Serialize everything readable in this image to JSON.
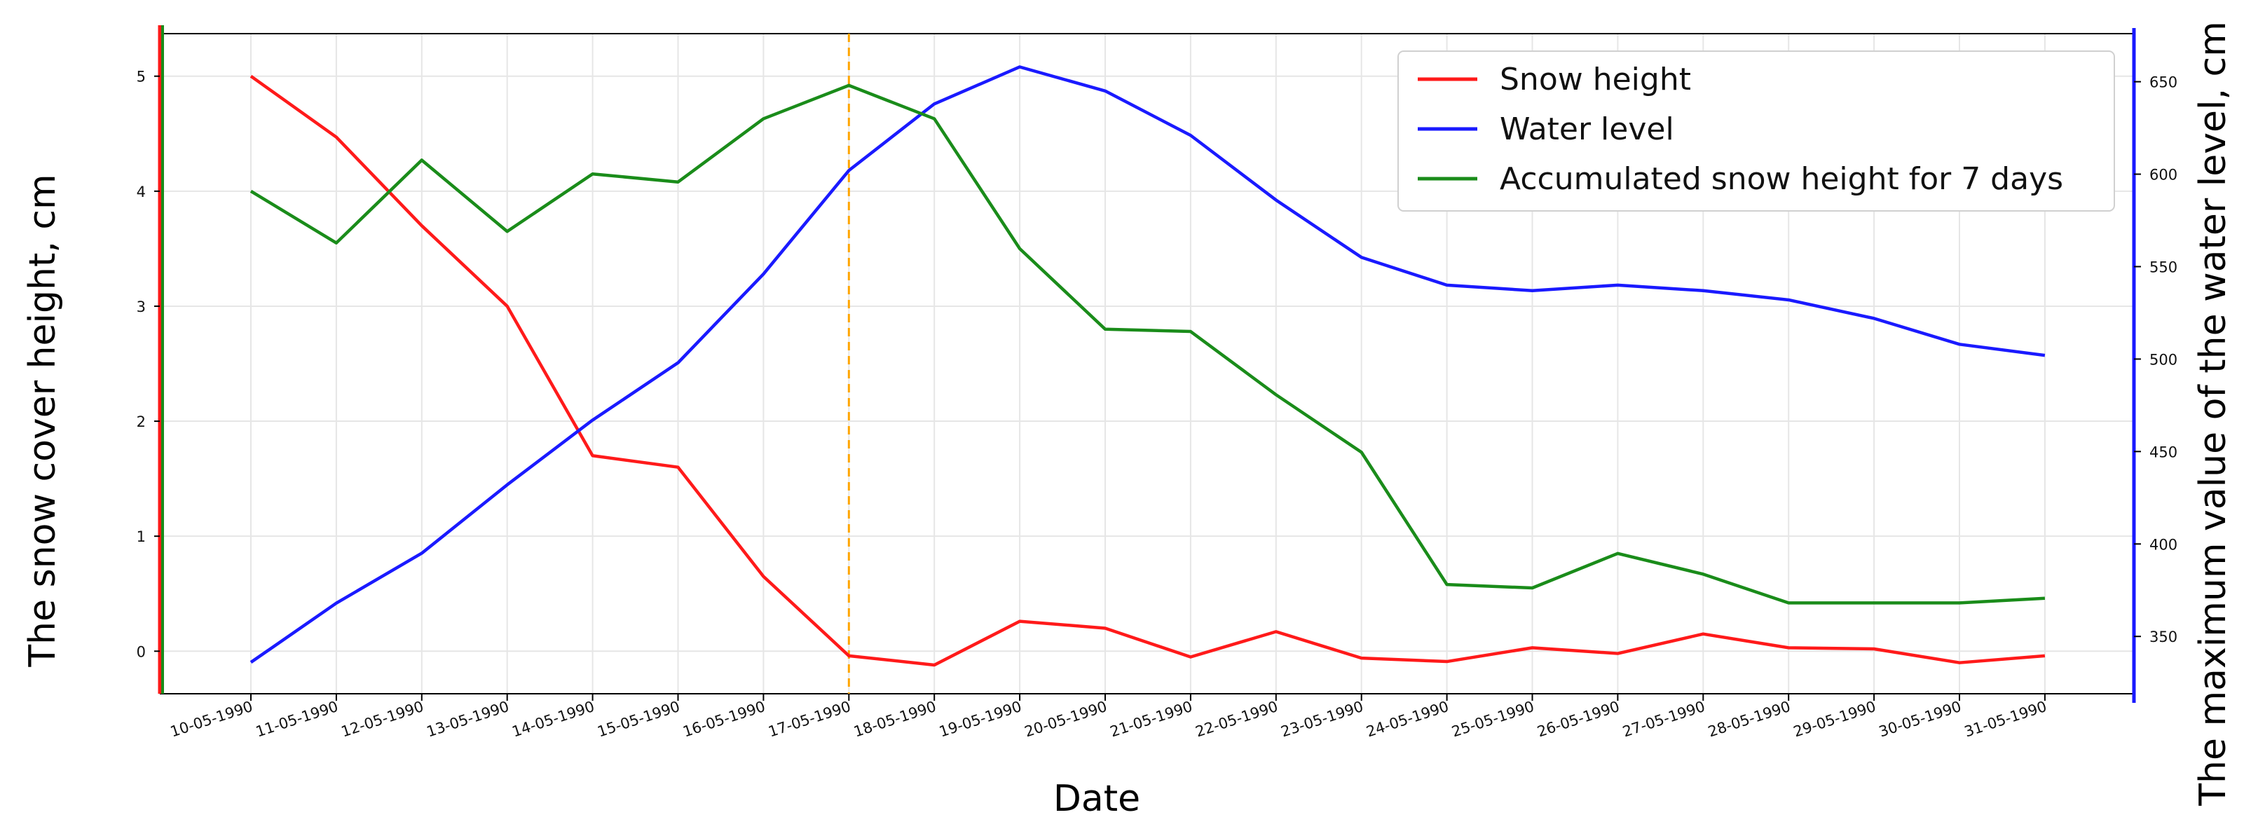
{
  "chart_data": {
    "type": "line",
    "title": "",
    "xlabel": "Date",
    "ylabel_left": "The snow cover height, cm",
    "ylabel_right": "The maximum value of the water level, cm",
    "categories": [
      "10-05-1990",
      "11-05-1990",
      "12-05-1990",
      "13-05-1990",
      "14-05-1990",
      "15-05-1990",
      "16-05-1990",
      "17-05-1990",
      "18-05-1990",
      "19-05-1990",
      "20-05-1990",
      "21-05-1990",
      "22-05-1990",
      "23-05-1990",
      "24-05-1990",
      "25-05-1990",
      "26-05-1990",
      "27-05-1990",
      "28-05-1990",
      "29-05-1990",
      "30-05-1990",
      "31-05-1990"
    ],
    "left_ylim": [
      -0.37,
      5.37
    ],
    "left_ticks": [
      "0",
      "1",
      "2",
      "3",
      "4",
      "5"
    ],
    "right_ylim": [
      319,
      676
    ],
    "right_ticks": [
      "350",
      "400",
      "450",
      "500",
      "550",
      "600",
      "650"
    ],
    "grid": true,
    "legend_position": "top-right",
    "highlight_category": "17-05-1990",
    "highlight_color": "#ffa500",
    "series": [
      {
        "name": "Snow height",
        "color": "#ff1a1a",
        "axis": "left",
        "values": [
          5.0,
          4.47,
          3.7,
          3.0,
          1.7,
          1.6,
          0.65,
          -0.04,
          -0.12,
          0.26,
          0.2,
          -0.05,
          0.17,
          -0.06,
          -0.09,
          0.03,
          -0.02,
          0.15,
          0.03,
          0.02,
          -0.1,
          -0.04
        ]
      },
      {
        "name": "Water level",
        "color": "#1a1aff",
        "axis": "left_start_offset",
        "values": [
          336,
          368,
          395,
          432,
          467,
          498,
          546,
          602,
          638,
          658,
          645,
          621,
          586,
          555,
          540,
          537,
          540,
          537,
          532,
          522,
          508,
          502
        ],
        "right_axis": true
      },
      {
        "name": "Accumulated snow height for 7 days",
        "color": "#1a8c1a",
        "axis": "left",
        "values": [
          4.0,
          3.55,
          4.27,
          3.65,
          4.15,
          4.08,
          4.63,
          4.92,
          4.63,
          3.5,
          2.8,
          2.78,
          2.23,
          1.73,
          0.58,
          0.55,
          0.85,
          0.67,
          0.42,
          0.42,
          0.42,
          0.46
        ]
      }
    ]
  }
}
